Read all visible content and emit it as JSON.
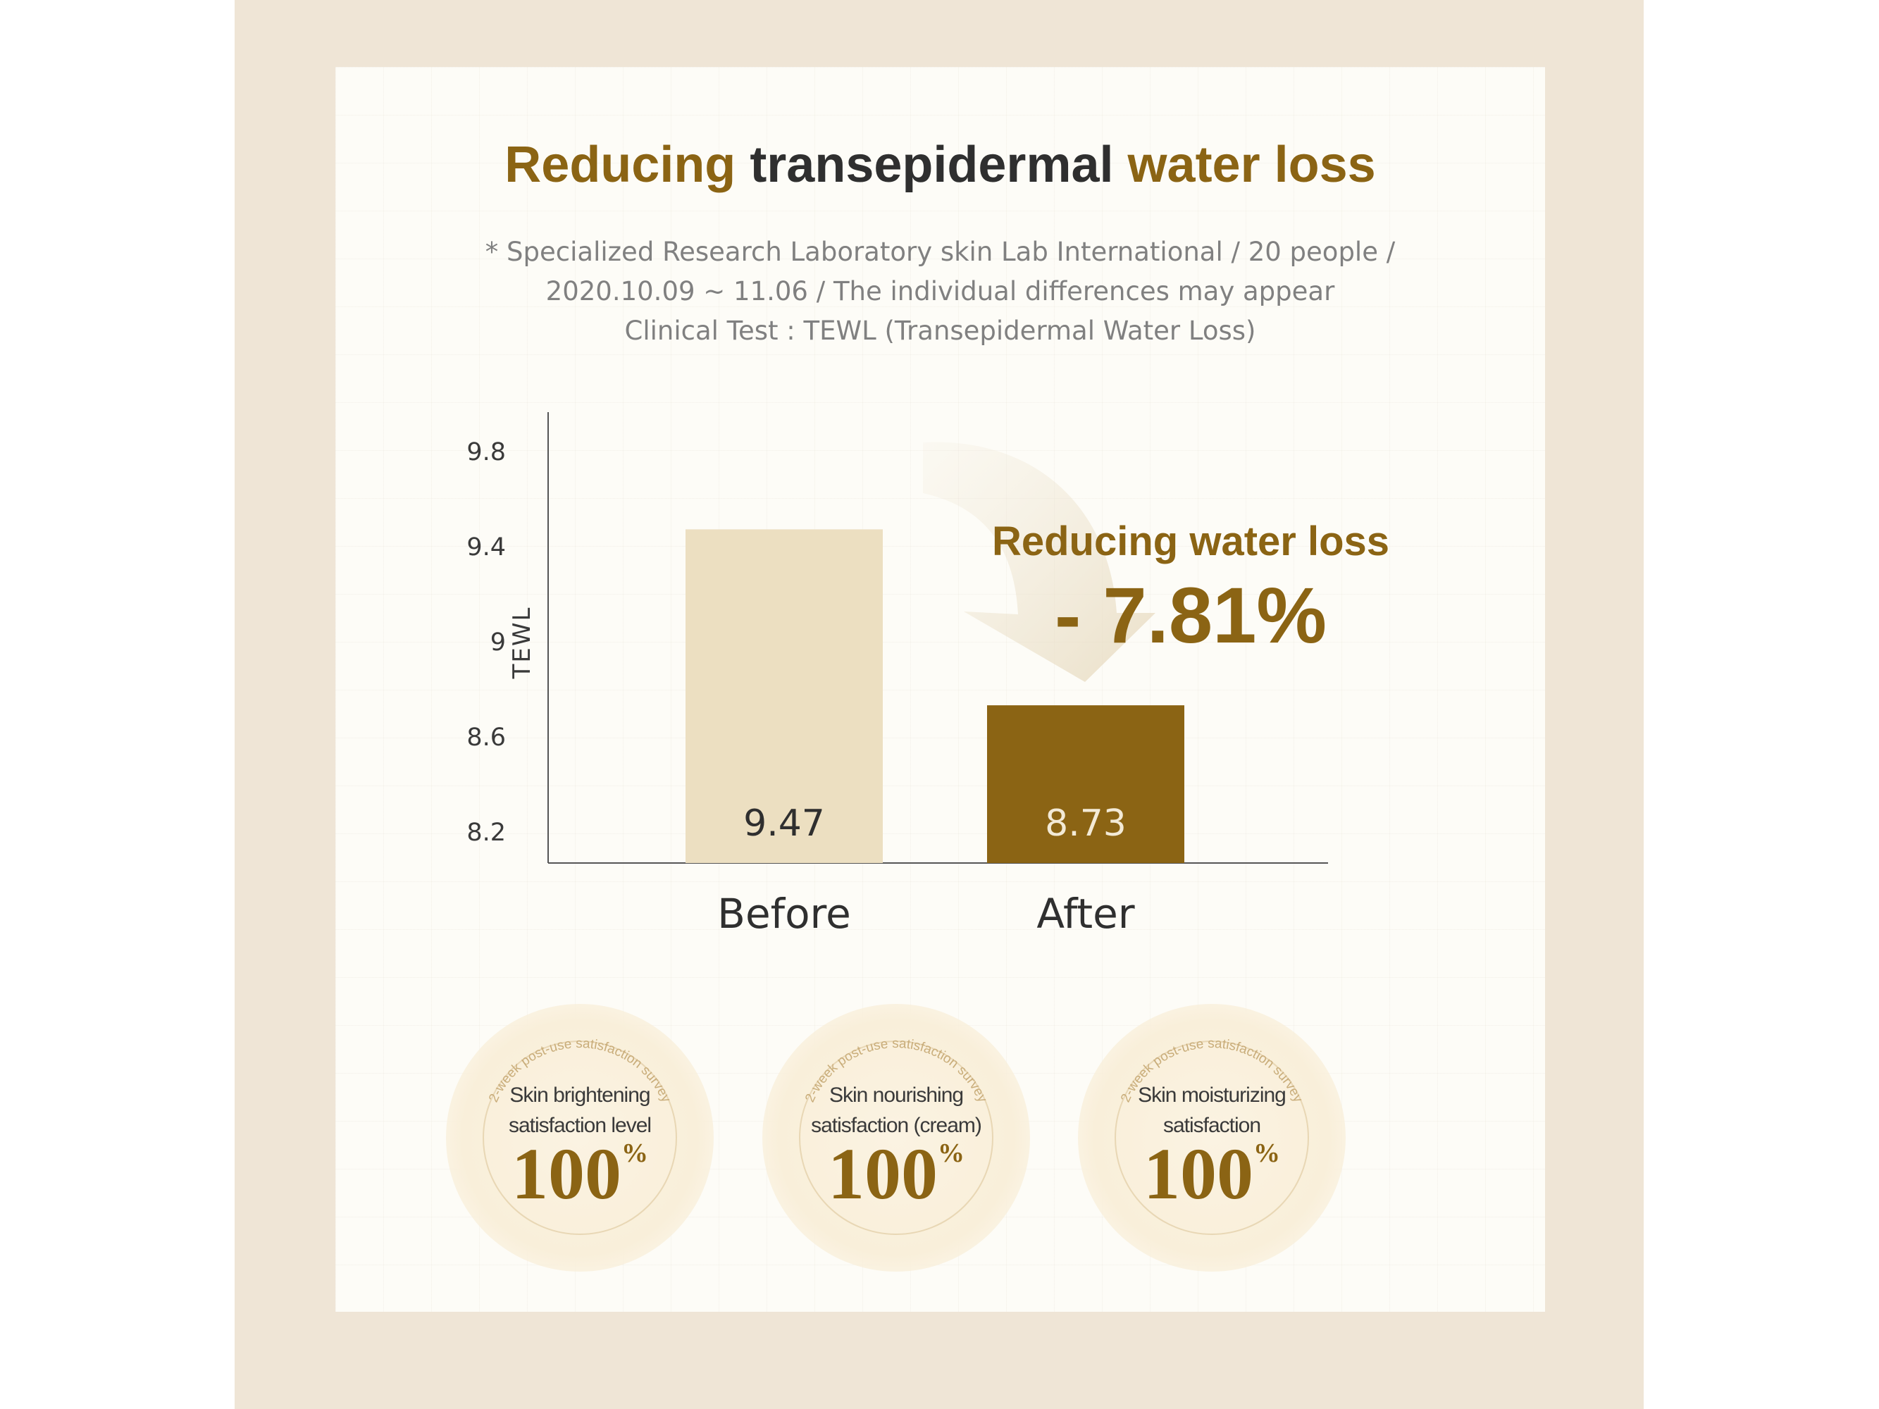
{
  "title": {
    "part1": "Reducing",
    "part2": "transepidermal",
    "part3": "water loss"
  },
  "subtitle_lines": [
    "* Specialized Research Laboratory skin Lab International / 20 people /",
    "2020.10.09 ~ 11.06 / The individual differences may appear",
    "Clinical Test : TEWL (Transepidermal Water Loss)"
  ],
  "chart_data": {
    "type": "bar",
    "categories": [
      "Before",
      "After"
    ],
    "values": [
      9.47,
      8.73
    ],
    "ylabel": "TEWL",
    "xlabel": "",
    "yticks": [
      8.2,
      8.6,
      9,
      9.4,
      9.8
    ],
    "ylim": [
      8.0,
      9.85
    ],
    "grid": false,
    "bar_colors": [
      "#ecdfc1",
      "#8b6414"
    ],
    "data_label_colors": [
      "#2f2f2f",
      "#f3ead6"
    ],
    "annotation": {
      "label": "Reducing water loss",
      "value": "- 7.81%"
    }
  },
  "badges": [
    {
      "arc_text": "2-week post-use satisfaction survey",
      "caption": [
        "Skin brightening",
        "satisfaction level"
      ],
      "value": "100",
      "unit": "%"
    },
    {
      "arc_text": "2-week post-use satisfaction survey",
      "caption": [
        "Skin nourishing",
        "satisfaction (cream)"
      ],
      "value": "100",
      "unit": "%"
    },
    {
      "arc_text": "2-week post-use satisfaction survey",
      "caption": [
        "Skin moisturizing",
        "satisfaction"
      ],
      "value": "100",
      "unit": "%"
    }
  ],
  "colors": {
    "gold": "#8b6414",
    "light_bar": "#ecdfc1",
    "title_dark": "#2f2f2f",
    "backdrop": "#efe5d6"
  }
}
